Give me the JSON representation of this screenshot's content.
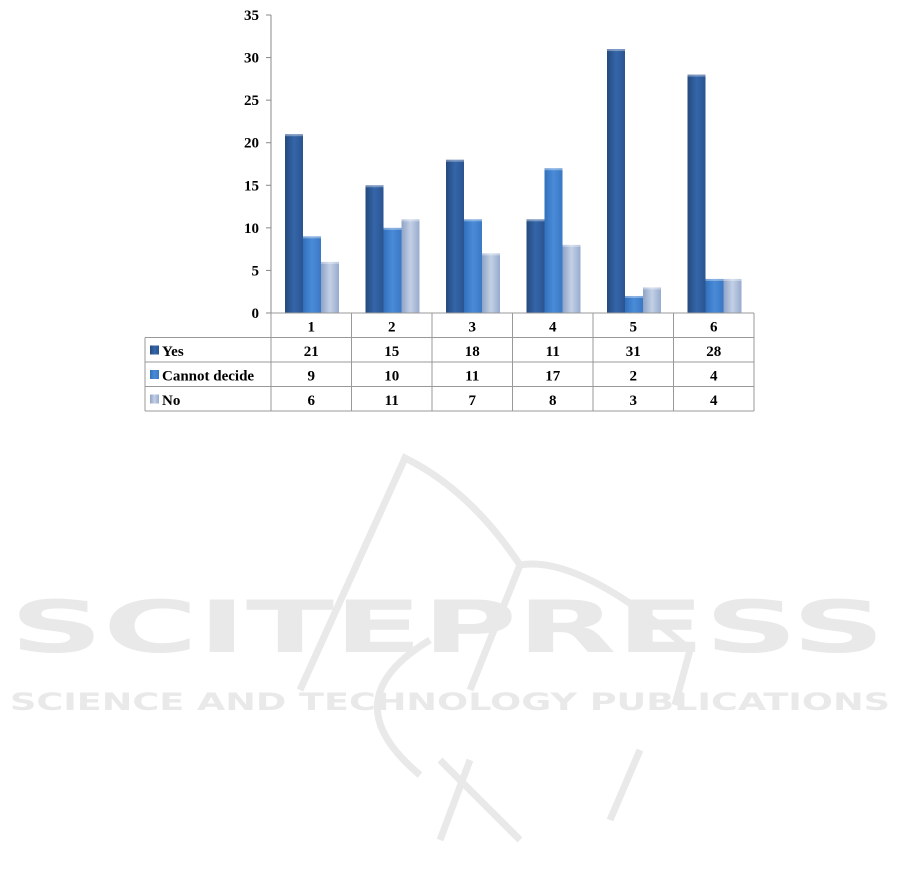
{
  "chart_data": {
    "type": "bar",
    "title": "",
    "xlabel": "",
    "ylabel": "",
    "ylim": [
      0,
      35
    ],
    "yticks": [
      0,
      5,
      10,
      15,
      20,
      25,
      30,
      35
    ],
    "grid": false,
    "legend": "data-table-left",
    "categories": [
      "1",
      "2",
      "3",
      "4",
      "5",
      "6"
    ],
    "series": [
      {
        "name": "Yes",
        "values": [
          21,
          15,
          18,
          11,
          31,
          28
        ],
        "color": "#2f5f9e"
      },
      {
        "name": "Cannot decide",
        "values": [
          9,
          10,
          11,
          17,
          2,
          4
        ],
        "color": "#3f7fcc"
      },
      {
        "name": "No",
        "values": [
          6,
          11,
          7,
          8,
          3,
          4
        ],
        "color": "#a7b9d8"
      }
    ]
  },
  "watermark": {
    "title": "SCITEPRESS",
    "subtitle": "SCIENCE AND TECHNOLOGY PUBLICATIONS",
    "color": "#e8e9e8"
  }
}
